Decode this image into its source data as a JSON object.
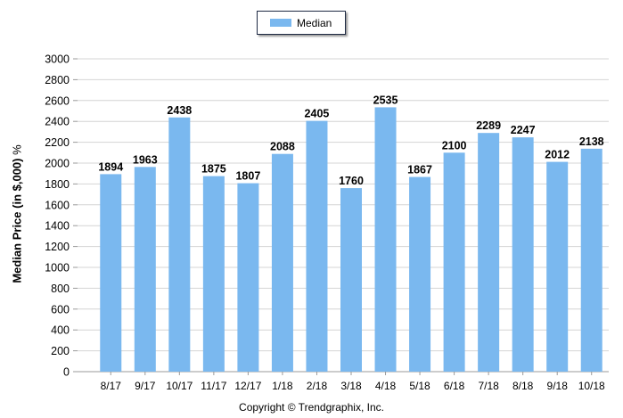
{
  "legend": {
    "label": "Median",
    "color": "#7ab8ef"
  },
  "copyright": "Copyright © Trendgraphix, Inc.",
  "axis": {
    "ylabel": "Median Price (in $,000)",
    "yunit": "%"
  },
  "chart_data": {
    "type": "bar",
    "categories": [
      "8/17",
      "9/17",
      "10/17",
      "11/17",
      "12/17",
      "1/18",
      "2/18",
      "3/18",
      "4/18",
      "5/18",
      "6/18",
      "7/18",
      "8/18",
      "9/18",
      "10/18"
    ],
    "series": [
      {
        "name": "Median",
        "values": [
          1894,
          1963,
          2438,
          1875,
          1807,
          2088,
          2405,
          1760,
          2535,
          1867,
          2100,
          2289,
          2247,
          2012,
          2138
        ]
      }
    ],
    "ylabel": "Median Price (in $,000) %",
    "ylim": [
      0,
      3000
    ],
    "yticks": [
      0,
      200,
      400,
      600,
      800,
      1000,
      1200,
      1400,
      1600,
      1800,
      2000,
      2200,
      2400,
      2600,
      2800,
      3000
    ],
    "grid": true,
    "legend_position": "top-center",
    "data_labels": true,
    "bar_color": "#7ab8ef"
  }
}
